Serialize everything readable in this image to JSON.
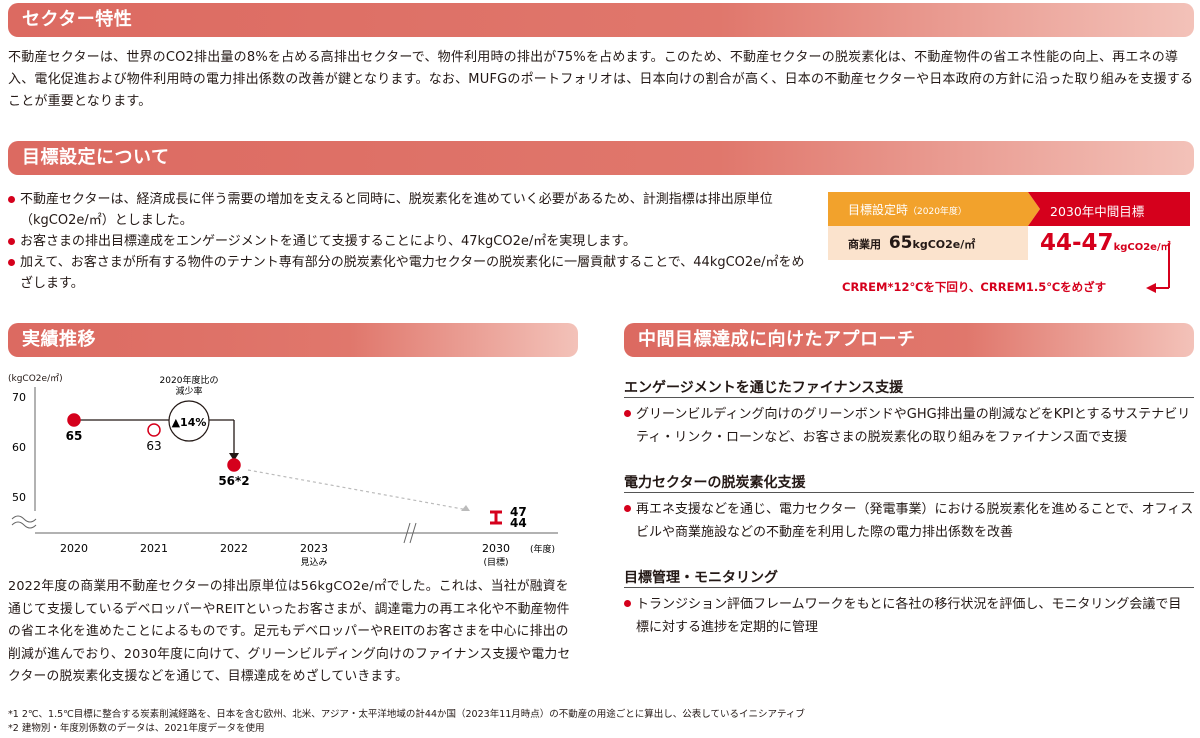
{
  "section1": {
    "title": "セクター特性",
    "body": "不動産セクターは、世界のCO2排出量の8%を占める高排出セクターで、物件利用時の排出が75%を占めます。このため、不動産セクターの脱炭素化は、不動産物件の省エネ性能の向上、再エネの導入、電化促進および物件利用時の電力排出係数の改善が鍵となります。なお、MUFGのポートフォリオは、日本向けの割合が高く、日本の不動産セクターや日本政府の方針に沿った取り組みを支援することが重要となります。"
  },
  "section2": {
    "title": "目標設定について",
    "bullets": [
      "不動産セクターは、経済成長に伴う需要の増加を支えると同時に、脱炭素化を進めていく必要があるため、計測指標は排出原単位（kgCO2e/㎡）としました。",
      "お客さまの排出目標達成をエンゲージメントを通じて支援することにより、47kgCO2e/㎡を実現します。",
      "加えて、お客さまが所有する物件のテナント専有部分の脱炭素化や電力セクターの脱炭素化に一層貢献することで、44kgCO2e/㎡をめざします。"
    ],
    "target_box": {
      "base_label": "目標設定時",
      "base_year": "（2020年度）",
      "goal_label": "2030年中間目標",
      "segment": "商業用",
      "base_value": "65",
      "unit": "kgCO2e/㎡",
      "goal_value": "44-47",
      "note": "CRREM*12℃を下回り、CRREM1.5℃をめざす"
    }
  },
  "section3": {
    "title": "実績推移",
    "text": "2022年度の商業用不動産セクターの排出原単位は56kgCO2e/㎡でした。これは、当社が融資を通じて支援しているデベロッパーやREITといったお客さまが、調達電力の再エネ化や不動産物件の省エネ化を進めたことによるものです。足元もデベロッパーやREITのお客さまを中心に排出の削減が進んでおり、2030年度に向けて、グリーンビルディング向けのファイナンス支援や電力セクターの脱炭素化支援などを通じて、目標達成をめざしていきます。"
  },
  "chart_data": {
    "type": "line",
    "ylabel": "(kgCO2e/㎡)",
    "xlabel": "(年度)",
    "ylim": [
      45,
      70
    ],
    "yticks": [
      "70",
      "60",
      "50"
    ],
    "categories": [
      "2020",
      "2021",
      "2022",
      "2023",
      "2030"
    ],
    "category_sublabels": [
      "",
      "",
      "",
      "見込み",
      "(目標)"
    ],
    "points": [
      {
        "x": "2020",
        "y": 65,
        "label": "65",
        "style": "filled"
      },
      {
        "x": "2021",
        "y": 63,
        "label": "63",
        "style": "open"
      },
      {
        "x": "2022",
        "y": 56,
        "label": "56*2",
        "style": "filled"
      }
    ],
    "target_range": {
      "x": "2030",
      "high": 47,
      "low": 44,
      "high_label": "47",
      "low_label": "44"
    },
    "annotation_title": "2020年度比の減少率",
    "annotation_value": "▲14%"
  },
  "section4": {
    "title": "中間目標達成に向けたアプローチ",
    "blocks": [
      {
        "heading": "エンゲージメントを通じたファイナンス支援",
        "text": "グリーンビルディング向けのグリーンボンドやGHG排出量の削減などをKPIとするサステナビリティ・リンク・ローンなど、お客さまの脱炭素化の取り組みをファイナンス面で支援"
      },
      {
        "heading": "電力セクターの脱炭素化支援",
        "text": "再エネ支援などを通じ、電力セクター（発電事業）における脱炭素化を進めることで、オフィスビルや商業施設などの不動産を利用した際の電力排出係数を改善"
      },
      {
        "heading": "目標管理・モニタリング",
        "text": "トランジション評価フレームワークをもとに各社の移行状況を評価し、モニタリング会議で目標に対する進捗を定期的に管理"
      }
    ]
  },
  "footnotes": [
    "*1 2℃、1.5℃目標に整合する炭素削減経路を、日本を含む欧州、北米、アジア・太平洋地域の計44か国（2023年11月時点）の不動産の用途ごとに算出し、公表しているイニシアティブ",
    "*2 建物別・年度別係数のデータは、2021年度データを使用"
  ],
  "colors": {
    "band": "#dc6a61",
    "accent": "#d5001c",
    "orange": "#f2a22c"
  }
}
